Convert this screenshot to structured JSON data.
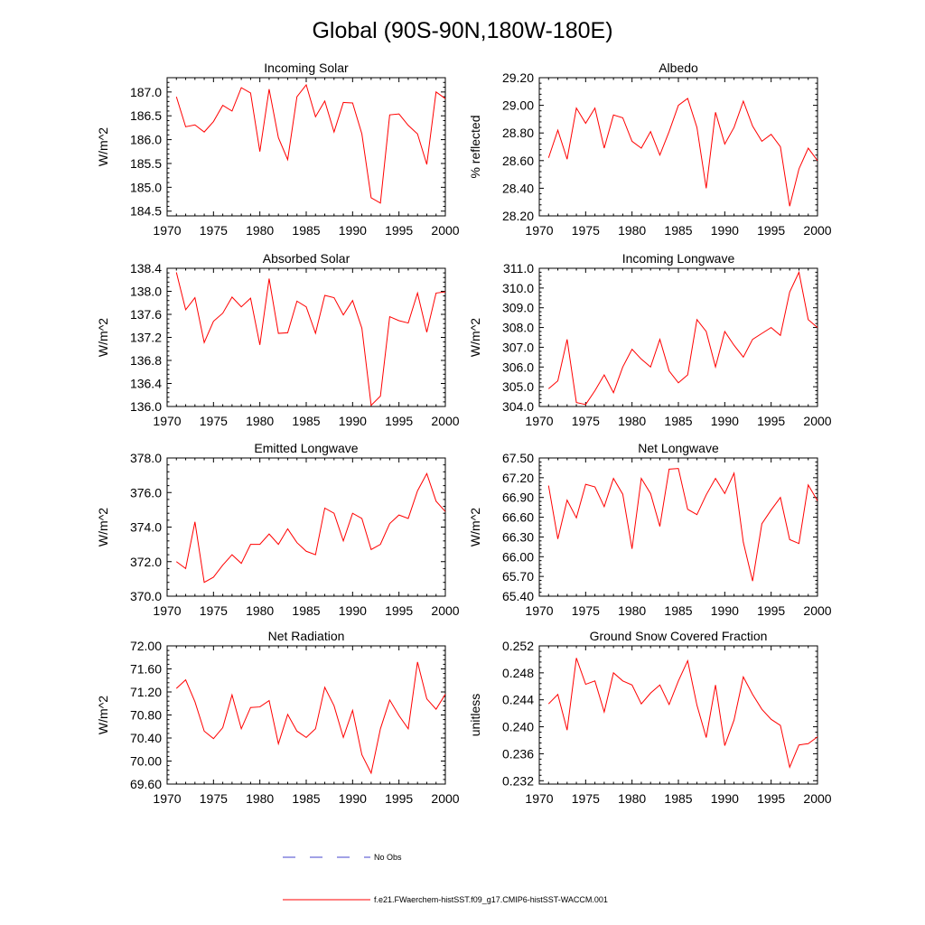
{
  "figure": {
    "title": "Global (90S-90N,180W-180E)",
    "series_color": "#ff0000",
    "obs_color": "#4444cc"
  },
  "legend": {
    "obs_label": "No Obs",
    "model_label": "f.e21.FWaerchem-histSST.f09_g17.CMIP6-histSST-WACCM.001"
  },
  "chart_data": [
    {
      "type": "line",
      "title": "Incoming Solar",
      "ylabel": "W/m^2",
      "xlim": [
        1970,
        2000
      ],
      "ylim": [
        184.4,
        187.3
      ],
      "xticks": [
        "1970",
        "1975",
        "1980",
        "1985",
        "1990",
        "1995",
        "2000"
      ],
      "yticks": [
        "184.5",
        "185.0",
        "185.5",
        "186.0",
        "186.5",
        "187.0"
      ],
      "x": [
        1971,
        1972,
        1973,
        1974,
        1975,
        1976,
        1977,
        1978,
        1979,
        1980,
        1981,
        1982,
        1983,
        1984,
        1985,
        1986,
        1987,
        1988,
        1989,
        1990,
        1991,
        1992,
        1993,
        1994,
        1995,
        1996,
        1997,
        1998,
        1999,
        2000
      ],
      "series": [
        {
          "values": [
            186.9,
            186.27,
            186.31,
            186.16,
            186.38,
            186.72,
            186.6,
            187.09,
            186.98,
            185.75,
            187.06,
            186.04,
            185.58,
            186.9,
            187.15,
            186.48,
            186.81,
            186.16,
            186.78,
            186.77,
            186.12,
            184.78,
            184.67,
            186.52,
            186.54,
            186.3,
            186.12,
            185.48,
            187.0,
            186.86
          ]
        }
      ]
    },
    {
      "type": "line",
      "title": "Albedo",
      "ylabel": "% reflected",
      "xlim": [
        1970,
        2000
      ],
      "ylim": [
        28.2,
        29.2
      ],
      "xticks": [
        "1970",
        "1975",
        "1980",
        "1985",
        "1990",
        "1995",
        "2000"
      ],
      "yticks": [
        "28.20",
        "28.40",
        "28.60",
        "28.80",
        "29.00",
        "29.20"
      ],
      "x": [
        1971,
        1972,
        1973,
        1974,
        1975,
        1976,
        1977,
        1978,
        1979,
        1980,
        1981,
        1982,
        1983,
        1984,
        1985,
        1986,
        1987,
        1988,
        1989,
        1990,
        1991,
        1992,
        1993,
        1994,
        1995,
        1996,
        1997,
        1998,
        1999,
        2000
      ],
      "series": [
        {
          "values": [
            28.62,
            28.82,
            28.61,
            28.98,
            28.87,
            28.98,
            28.69,
            28.93,
            28.91,
            28.74,
            28.69,
            28.81,
            28.64,
            28.81,
            29.0,
            29.05,
            28.84,
            28.4,
            28.95,
            28.72,
            28.84,
            29.03,
            28.85,
            28.74,
            28.79,
            28.7,
            28.27,
            28.54,
            28.69,
            28.6
          ]
        }
      ]
    },
    {
      "type": "line",
      "title": "Absorbed Solar",
      "ylabel": "W/m^2",
      "xlim": [
        1970,
        2000
      ],
      "ylim": [
        136.0,
        138.4
      ],
      "xticks": [
        "1970",
        "1975",
        "1980",
        "1985",
        "1990",
        "1995",
        "2000"
      ],
      "yticks": [
        "136.0",
        "136.4",
        "136.8",
        "137.2",
        "137.6",
        "138.0",
        "138.4"
      ],
      "x": [
        1971,
        1972,
        1973,
        1974,
        1975,
        1976,
        1977,
        1978,
        1979,
        1980,
        1981,
        1982,
        1983,
        1984,
        1985,
        1986,
        1987,
        1988,
        1989,
        1990,
        1991,
        1992,
        1993,
        1994,
        1995,
        1996,
        1997,
        1998,
        1999,
        2000
      ],
      "series": [
        {
          "values": [
            138.33,
            137.68,
            137.89,
            137.11,
            137.48,
            137.62,
            137.9,
            137.73,
            137.88,
            137.07,
            138.22,
            137.27,
            137.28,
            137.83,
            137.73,
            137.27,
            137.93,
            137.89,
            137.59,
            137.84,
            137.36,
            136.02,
            136.18,
            137.56,
            137.49,
            137.45,
            137.97,
            137.29,
            137.97,
            137.99
          ]
        }
      ]
    },
    {
      "type": "line",
      "title": "Incoming Longwave",
      "ylabel": "W/m^2",
      "xlim": [
        1970,
        2000
      ],
      "ylim": [
        304.0,
        311.0
      ],
      "xticks": [
        "1970",
        "1975",
        "1980",
        "1985",
        "1990",
        "1995",
        "2000"
      ],
      "yticks": [
        "304.0",
        "305.0",
        "306.0",
        "307.0",
        "308.0",
        "309.0",
        "310.0",
        "311.0"
      ],
      "x": [
        1971,
        1972,
        1973,
        1974,
        1975,
        1976,
        1977,
        1978,
        1979,
        1980,
        1981,
        1982,
        1983,
        1984,
        1985,
        1986,
        1987,
        1988,
        1989,
        1990,
        1991,
        1992,
        1993,
        1994,
        1995,
        1996,
        1997,
        1998,
        1999,
        2000
      ],
      "series": [
        {
          "values": [
            304.9,
            305.3,
            307.4,
            304.2,
            304.1,
            304.8,
            305.6,
            304.7,
            306.0,
            306.9,
            306.4,
            306.0,
            307.4,
            305.8,
            305.2,
            305.6,
            308.4,
            307.8,
            306.0,
            307.8,
            307.1,
            306.5,
            307.4,
            307.7,
            308.0,
            307.6,
            309.8,
            310.8,
            308.4,
            308.0
          ]
        }
      ]
    },
    {
      "type": "line",
      "title": "Emitted Longwave",
      "ylabel": "W/m^2",
      "xlim": [
        1970,
        2000
      ],
      "ylim": [
        370.0,
        378.0
      ],
      "xticks": [
        "1970",
        "1975",
        "1980",
        "1985",
        "1990",
        "1995",
        "2000"
      ],
      "yticks": [
        "370.0",
        "372.0",
        "374.0",
        "376.0",
        "378.0"
      ],
      "x": [
        1971,
        1972,
        1973,
        1974,
        1975,
        1976,
        1977,
        1978,
        1979,
        1980,
        1981,
        1982,
        1983,
        1984,
        1985,
        1986,
        1987,
        1988,
        1989,
        1990,
        1991,
        1992,
        1993,
        1994,
        1995,
        1996,
        1997,
        1998,
        1999,
        2000
      ],
      "series": [
        {
          "values": [
            372.0,
            371.6,
            374.3,
            370.8,
            371.1,
            371.8,
            372.4,
            371.9,
            373.0,
            373.0,
            373.6,
            373.0,
            373.9,
            373.1,
            372.6,
            372.4,
            375.1,
            374.8,
            373.2,
            374.8,
            374.5,
            372.7,
            373.0,
            374.2,
            374.7,
            374.5,
            376.1,
            377.1,
            375.5,
            374.9
          ]
        }
      ]
    },
    {
      "type": "line",
      "title": "Net Longwave",
      "ylabel": "W/m^2",
      "xlim": [
        1970,
        2000
      ],
      "ylim": [
        65.4,
        67.5
      ],
      "xticks": [
        "1970",
        "1975",
        "1980",
        "1985",
        "1990",
        "1995",
        "2000"
      ],
      "yticks": [
        "65.40",
        "65.70",
        "66.00",
        "66.30",
        "66.60",
        "66.90",
        "67.20",
        "67.50"
      ],
      "x": [
        1971,
        1972,
        1973,
        1974,
        1975,
        1976,
        1977,
        1978,
        1979,
        1980,
        1981,
        1982,
        1983,
        1984,
        1985,
        1986,
        1987,
        1988,
        1989,
        1990,
        1991,
        1992,
        1993,
        1994,
        1995,
        1996,
        1997,
        1998,
        1999,
        2000
      ],
      "series": [
        {
          "values": [
            67.08,
            66.27,
            66.86,
            66.59,
            67.1,
            67.06,
            66.76,
            67.19,
            66.95,
            66.12,
            67.19,
            66.96,
            66.46,
            67.33,
            67.34,
            66.72,
            66.64,
            66.94,
            67.19,
            66.96,
            67.27,
            66.22,
            65.63,
            66.5,
            66.71,
            66.9,
            66.26,
            66.2,
            67.09,
            66.85
          ]
        }
      ]
    },
    {
      "type": "line",
      "title": "Net Radiation",
      "ylabel": "W/m^2",
      "xlim": [
        1970,
        2000
      ],
      "ylim": [
        69.6,
        72.0
      ],
      "xticks": [
        "1970",
        "1975",
        "1980",
        "1985",
        "1990",
        "1995",
        "2000"
      ],
      "yticks": [
        "69.60",
        "70.00",
        "70.40",
        "70.80",
        "71.20",
        "71.60",
        "72.00"
      ],
      "x": [
        1971,
        1972,
        1973,
        1974,
        1975,
        1976,
        1977,
        1978,
        1979,
        1980,
        1981,
        1982,
        1983,
        1984,
        1985,
        1986,
        1987,
        1988,
        1989,
        1990,
        1991,
        1992,
        1993,
        1994,
        1995,
        1996,
        1997,
        1998,
        1999,
        2000
      ],
      "series": [
        {
          "values": [
            71.26,
            71.41,
            71.03,
            70.52,
            70.39,
            70.58,
            71.15,
            70.56,
            70.93,
            70.94,
            71.05,
            70.3,
            70.81,
            70.52,
            70.41,
            70.56,
            71.28,
            70.96,
            70.41,
            70.88,
            70.11,
            69.79,
            70.56,
            71.06,
            70.79,
            70.56,
            71.72,
            71.08,
            70.9,
            71.16
          ]
        }
      ]
    },
    {
      "type": "line",
      "title": "Ground Snow Covered Fraction",
      "ylabel": "unitless",
      "xlim": [
        1970,
        2000
      ],
      "ylim": [
        0.2315,
        0.252
      ],
      "xticks": [
        "1970",
        "1975",
        "1980",
        "1985",
        "1990",
        "1995",
        "2000"
      ],
      "yticks": [
        "0.232",
        "0.236",
        "0.240",
        "0.244",
        "0.248",
        "0.252"
      ],
      "x": [
        1971,
        1972,
        1973,
        1974,
        1975,
        1976,
        1977,
        1978,
        1979,
        1980,
        1981,
        1982,
        1983,
        1984,
        1985,
        1986,
        1987,
        1988,
        1989,
        1990,
        1991,
        1992,
        1993,
        1994,
        1995,
        1996,
        1997,
        1998,
        1999,
        2000
      ],
      "series": [
        {
          "values": [
            0.2434,
            0.2448,
            0.2395,
            0.2502,
            0.2463,
            0.2468,
            0.2422,
            0.248,
            0.2468,
            0.2462,
            0.2434,
            0.245,
            0.2462,
            0.2433,
            0.2468,
            0.2498,
            0.2432,
            0.2384,
            0.2462,
            0.2372,
            0.241,
            0.2474,
            0.2448,
            0.2426,
            0.2411,
            0.2402,
            0.234,
            0.2373,
            0.2375,
            0.2385
          ]
        }
      ]
    }
  ]
}
